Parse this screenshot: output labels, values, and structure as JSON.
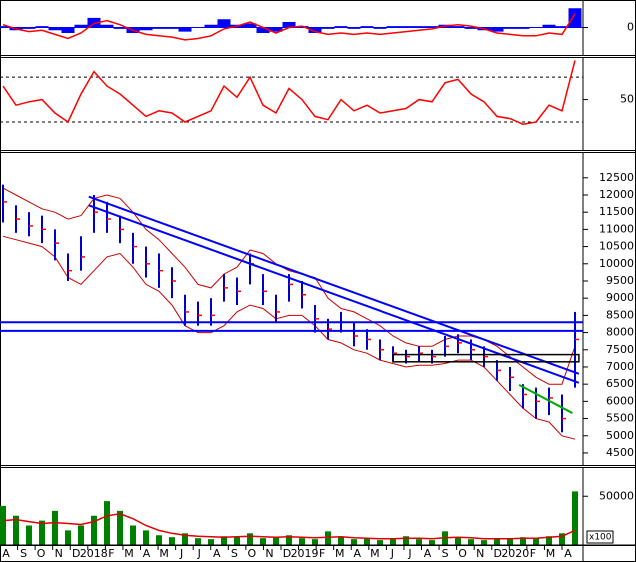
{
  "chart_data": [
    {
      "type": "macd",
      "ylim": [
        -100,
        100
      ],
      "yticks": [
        0
      ],
      "series": [
        {
          "style": "histogram",
          "color": "#0000ff",
          "values": [
            5,
            -10,
            -5,
            5,
            -10,
            -20,
            10,
            35,
            10,
            -5,
            -20,
            -10,
            -5,
            -5,
            -15,
            0,
            10,
            30,
            10,
            15,
            -20,
            -15,
            20,
            5,
            -20,
            -5,
            5,
            -5,
            5,
            -5,
            5,
            5,
            5,
            5,
            10,
            5,
            -5,
            -10,
            -15,
            -5,
            -5,
            0,
            10,
            5,
            70
          ]
        },
        {
          "style": "line",
          "color": "#ff0000",
          "values": [
            10,
            -5,
            -15,
            -10,
            -25,
            -40,
            -20,
            15,
            25,
            10,
            -10,
            -25,
            -30,
            -35,
            -45,
            -40,
            -30,
            -5,
            5,
            20,
            0,
            -20,
            0,
            5,
            -15,
            -25,
            -20,
            -25,
            -20,
            -25,
            -20,
            -15,
            -10,
            -5,
            5,
            10,
            5,
            -5,
            -20,
            -25,
            -30,
            -30,
            -20,
            -25,
            50
          ]
        }
      ]
    },
    {
      "type": "rsi",
      "ylim": [
        5,
        88
      ],
      "yticks": [
        50
      ],
      "levels": [
        70,
        30
      ],
      "series": [
        {
          "style": "line",
          "color": "#ff0000",
          "values": [
            62,
            45,
            48,
            50,
            38,
            30,
            55,
            75,
            62,
            55,
            45,
            35,
            40,
            38,
            30,
            35,
            40,
            62,
            52,
            70,
            45,
            38,
            60,
            50,
            35,
            32,
            50,
            40,
            45,
            38,
            40,
            42,
            50,
            48,
            65,
            68,
            55,
            48,
            35,
            33,
            28,
            30,
            45,
            40,
            85
          ]
        }
      ]
    },
    {
      "type": "candlestick",
      "ylim": [
        4150,
        13250
      ],
      "yticks": [
        4500,
        5000,
        5500,
        6000,
        6500,
        7000,
        7500,
        8000,
        8500,
        9000,
        9500,
        10000,
        10500,
        11000,
        11500,
        12000,
        12500
      ],
      "bar_color": "#0000cc",
      "close_color": "#ff0000",
      "high": [
        12300,
        11700,
        11500,
        11400,
        11000,
        10300,
        10800,
        12000,
        11800,
        11400,
        10900,
        10500,
        10300,
        9900,
        9100,
        8900,
        9000,
        9700,
        9600,
        10300,
        9700,
        9100,
        9700,
        9500,
        8800,
        8400,
        8600,
        8300,
        8100,
        7800,
        7600,
        7500,
        7600,
        7500,
        7900,
        7950,
        7800,
        7600,
        7200,
        7000,
        6500,
        6400,
        6400,
        6200,
        8600
      ],
      "low": [
        11200,
        10900,
        10800,
        10600,
        10100,
        9500,
        9800,
        10900,
        10900,
        10600,
        10000,
        9600,
        9300,
        9000,
        8200,
        8200,
        8200,
        8900,
        8800,
        9400,
        8800,
        8300,
        8900,
        8700,
        8000,
        7800,
        8000,
        7600,
        7500,
        7200,
        7150,
        7100,
        7150,
        7100,
        7300,
        7400,
        7200,
        7000,
        6600,
        6300,
        5800,
        5500,
        5600,
        5100,
        6400
      ],
      "close": [
        11800,
        11300,
        11100,
        11000,
        10600,
        9800,
        10200,
        11500,
        11300,
        11000,
        10500,
        10000,
        9800,
        9500,
        8600,
        8500,
        8500,
        9300,
        9200,
        10000,
        9200,
        8600,
        9400,
        9100,
        8400,
        8100,
        8300,
        7900,
        7800,
        7500,
        7400,
        7300,
        7400,
        7300,
        7600,
        7700,
        7500,
        7300,
        6900,
        6700,
        6200,
        6000,
        6100,
        5500,
        7800
      ],
      "bands": {
        "color": "#cc0000",
        "upper": [
          12200,
          12000,
          11800,
          11600,
          11500,
          11300,
          11400,
          11900,
          12000,
          11900,
          11500,
          11000,
          10700,
          10300,
          9900,
          9400,
          9300,
          9700,
          9900,
          10400,
          10300,
          10000,
          9800,
          9700,
          9600,
          9000,
          8700,
          8600,
          8400,
          8200,
          7900,
          7700,
          7600,
          7600,
          7800,
          7900,
          7900,
          7800,
          7600,
          7300,
          7000,
          6700,
          6500,
          6500,
          7600
        ],
        "lower": [
          10800,
          10700,
          10600,
          10500,
          10200,
          9600,
          9400,
          9800,
          10200,
          10300,
          9900,
          9400,
          9200,
          8800,
          8200,
          8000,
          8000,
          8200,
          8600,
          8800,
          8700,
          8400,
          8500,
          8500,
          8200,
          7800,
          7700,
          7500,
          7400,
          7200,
          7100,
          7000,
          7050,
          7050,
          7100,
          7200,
          7200,
          7000,
          6600,
          6200,
          5800,
          5500,
          5400,
          5000,
          4900
        ]
      },
      "lines": [
        {
          "color": "#0000ff",
          "x": [
            6.6,
            44.3
          ],
          "y": [
            11950,
            6800
          ]
        },
        {
          "color": "#0000ff",
          "x": [
            6.6,
            44.3
          ],
          "y": [
            11700,
            6540
          ]
        },
        {
          "color": "#0000ff",
          "x": [
            -0.3,
            44.6
          ],
          "y": [
            8300,
            8300
          ]
        },
        {
          "color": "#0000ff",
          "x": [
            -0.3,
            44.6
          ],
          "y": [
            8050,
            8050
          ]
        },
        {
          "color": "#00aa00",
          "x": [
            39.7,
            43.8
          ],
          "y": [
            6480,
            5660
          ]
        }
      ],
      "box": {
        "x": [
          30,
          44.3
        ],
        "y": [
          7150,
          7360
        ],
        "color": "#000000"
      }
    },
    {
      "type": "volume",
      "ylim": [
        0,
        80000
      ],
      "yticks": [
        50000
      ],
      "unit": "x100",
      "series": [
        {
          "style": "bars",
          "color": "#008000",
          "values": [
            40000,
            30000,
            20000,
            25000,
            35000,
            15000,
            20000,
            30000,
            45000,
            35000,
            20000,
            15000,
            10000,
            8000,
            12000,
            7000,
            6000,
            9000,
            8000,
            12000,
            7000,
            8000,
            10000,
            7000,
            6000,
            14000,
            8000,
            6000,
            7000,
            5000,
            6000,
            9000,
            6000,
            5000,
            14000,
            8000,
            6000,
            5000,
            7000,
            6000,
            8000,
            7000,
            9000,
            12000,
            55000
          ]
        },
        {
          "style": "line",
          "color": "#dd0000",
          "values": [
            25000,
            26000,
            24000,
            22000,
            23000,
            22000,
            21000,
            24000,
            30000,
            32000,
            27000,
            20000,
            15000,
            12000,
            10000,
            9000,
            8500,
            8000,
            8500,
            9000,
            8500,
            8000,
            8500,
            8000,
            7500,
            8000,
            8500,
            7500,
            7000,
            6500,
            6500,
            7000,
            7000,
            6500,
            7500,
            8000,
            7500,
            6500,
            6500,
            6500,
            7000,
            7000,
            8000,
            9000,
            15000
          ]
        }
      ]
    }
  ],
  "x_axis": {
    "labels": [
      "A",
      "S",
      "O",
      "N",
      "D",
      "2018",
      "F",
      "M",
      "A",
      "M",
      "J",
      "J",
      "A",
      "S",
      "O",
      "N",
      "D",
      "2019",
      "F",
      "M",
      "A",
      "M",
      "J",
      "J",
      "A",
      "S",
      "O",
      "N",
      "D",
      "2020",
      "F",
      "M",
      "A"
    ]
  }
}
